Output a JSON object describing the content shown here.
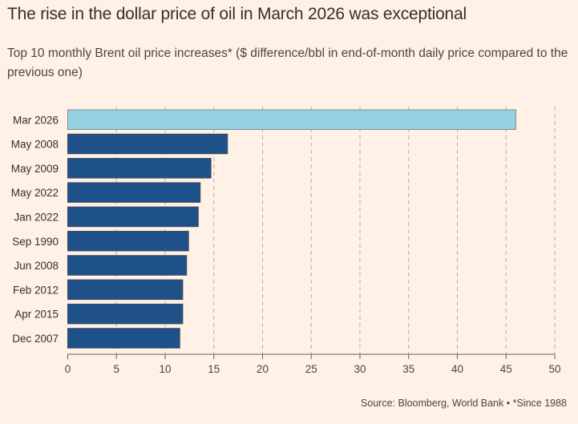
{
  "title": "The rise in the dollar price of oil in March 2026 was exceptional",
  "subtitle": "Top 10 monthly Brent oil price increases* ($ difference/bbl in end-of-month daily price compared to the previous one)",
  "source": "Source: Bloomberg, World Bank • *Since 1988",
  "colors": {
    "highlight": "#96d1e3",
    "bar": "#1f5189",
    "background": "#fff1e5"
  },
  "chart_data": {
    "type": "bar",
    "orientation": "horizontal",
    "title": "The rise in the dollar price of oil in March 2026 was exceptional",
    "subtitle": "Top 10 monthly Brent oil price increases* ($ difference/bbl in end-of-month daily price compared to the previous one)",
    "xlabel": "",
    "ylabel": "",
    "categories": [
      "Mar 2026",
      "May 2008",
      "May 2009",
      "May 2022",
      "Jan 2022",
      "Sep 1990",
      "Jun 2008",
      "Feb 2012",
      "Apr 2015",
      "Dec 2007"
    ],
    "values": [
      46.0,
      16.4,
      14.7,
      13.6,
      13.4,
      12.4,
      12.2,
      11.8,
      11.8,
      11.5
    ],
    "highlighted": [
      "Mar 2026"
    ],
    "xlim": [
      0,
      50
    ],
    "xticks": [
      0,
      5,
      10,
      15,
      20,
      25,
      30,
      35,
      40,
      45,
      50
    ],
    "grid": "vertical dashed",
    "legend": "none"
  }
}
